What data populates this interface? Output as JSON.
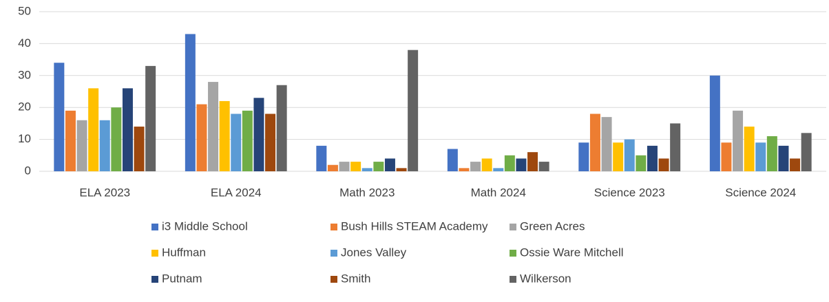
{
  "chart_data": {
    "type": "bar",
    "categories": [
      "ELA 2023",
      "ELA 2024",
      "Math 2023",
      "Math 2024",
      "Science 2023",
      "Science 2024"
    ],
    "series": [
      {
        "name": "i3 Middle School",
        "color": "#4472c4",
        "values": [
          34,
          43,
          8,
          7,
          9,
          30
        ]
      },
      {
        "name": "Bush Hills STEAM Academy",
        "color": "#ed7d31",
        "values": [
          19,
          21,
          2,
          1,
          18,
          9
        ]
      },
      {
        "name": "Green Acres",
        "color": "#a5a5a5",
        "values": [
          16,
          28,
          3,
          3,
          17,
          19
        ]
      },
      {
        "name": "Huffman",
        "color": "#ffc000",
        "values": [
          26,
          22,
          3,
          4,
          9,
          14
        ]
      },
      {
        "name": "Jones Valley",
        "color": "#5b9bd5",
        "values": [
          16,
          18,
          1,
          1,
          10,
          9
        ]
      },
      {
        "name": "Ossie Ware Mitchell",
        "color": "#70ad47",
        "values": [
          20,
          19,
          3,
          5,
          5,
          11
        ]
      },
      {
        "name": "Putnam",
        "color": "#264478",
        "values": [
          26,
          23,
          4,
          4,
          8,
          8
        ]
      },
      {
        "name": "Smith",
        "color": "#9e480e",
        "values": [
          14,
          18,
          1,
          6,
          4,
          4
        ]
      },
      {
        "name": "Wilkerson",
        "color": "#636363",
        "values": [
          33,
          27,
          38,
          3,
          15,
          12
        ]
      }
    ],
    "ylim": [
      0,
      50
    ],
    "yticks": [
      0,
      10,
      20,
      30,
      40,
      50
    ],
    "grid": true,
    "legend": "bottom"
  }
}
